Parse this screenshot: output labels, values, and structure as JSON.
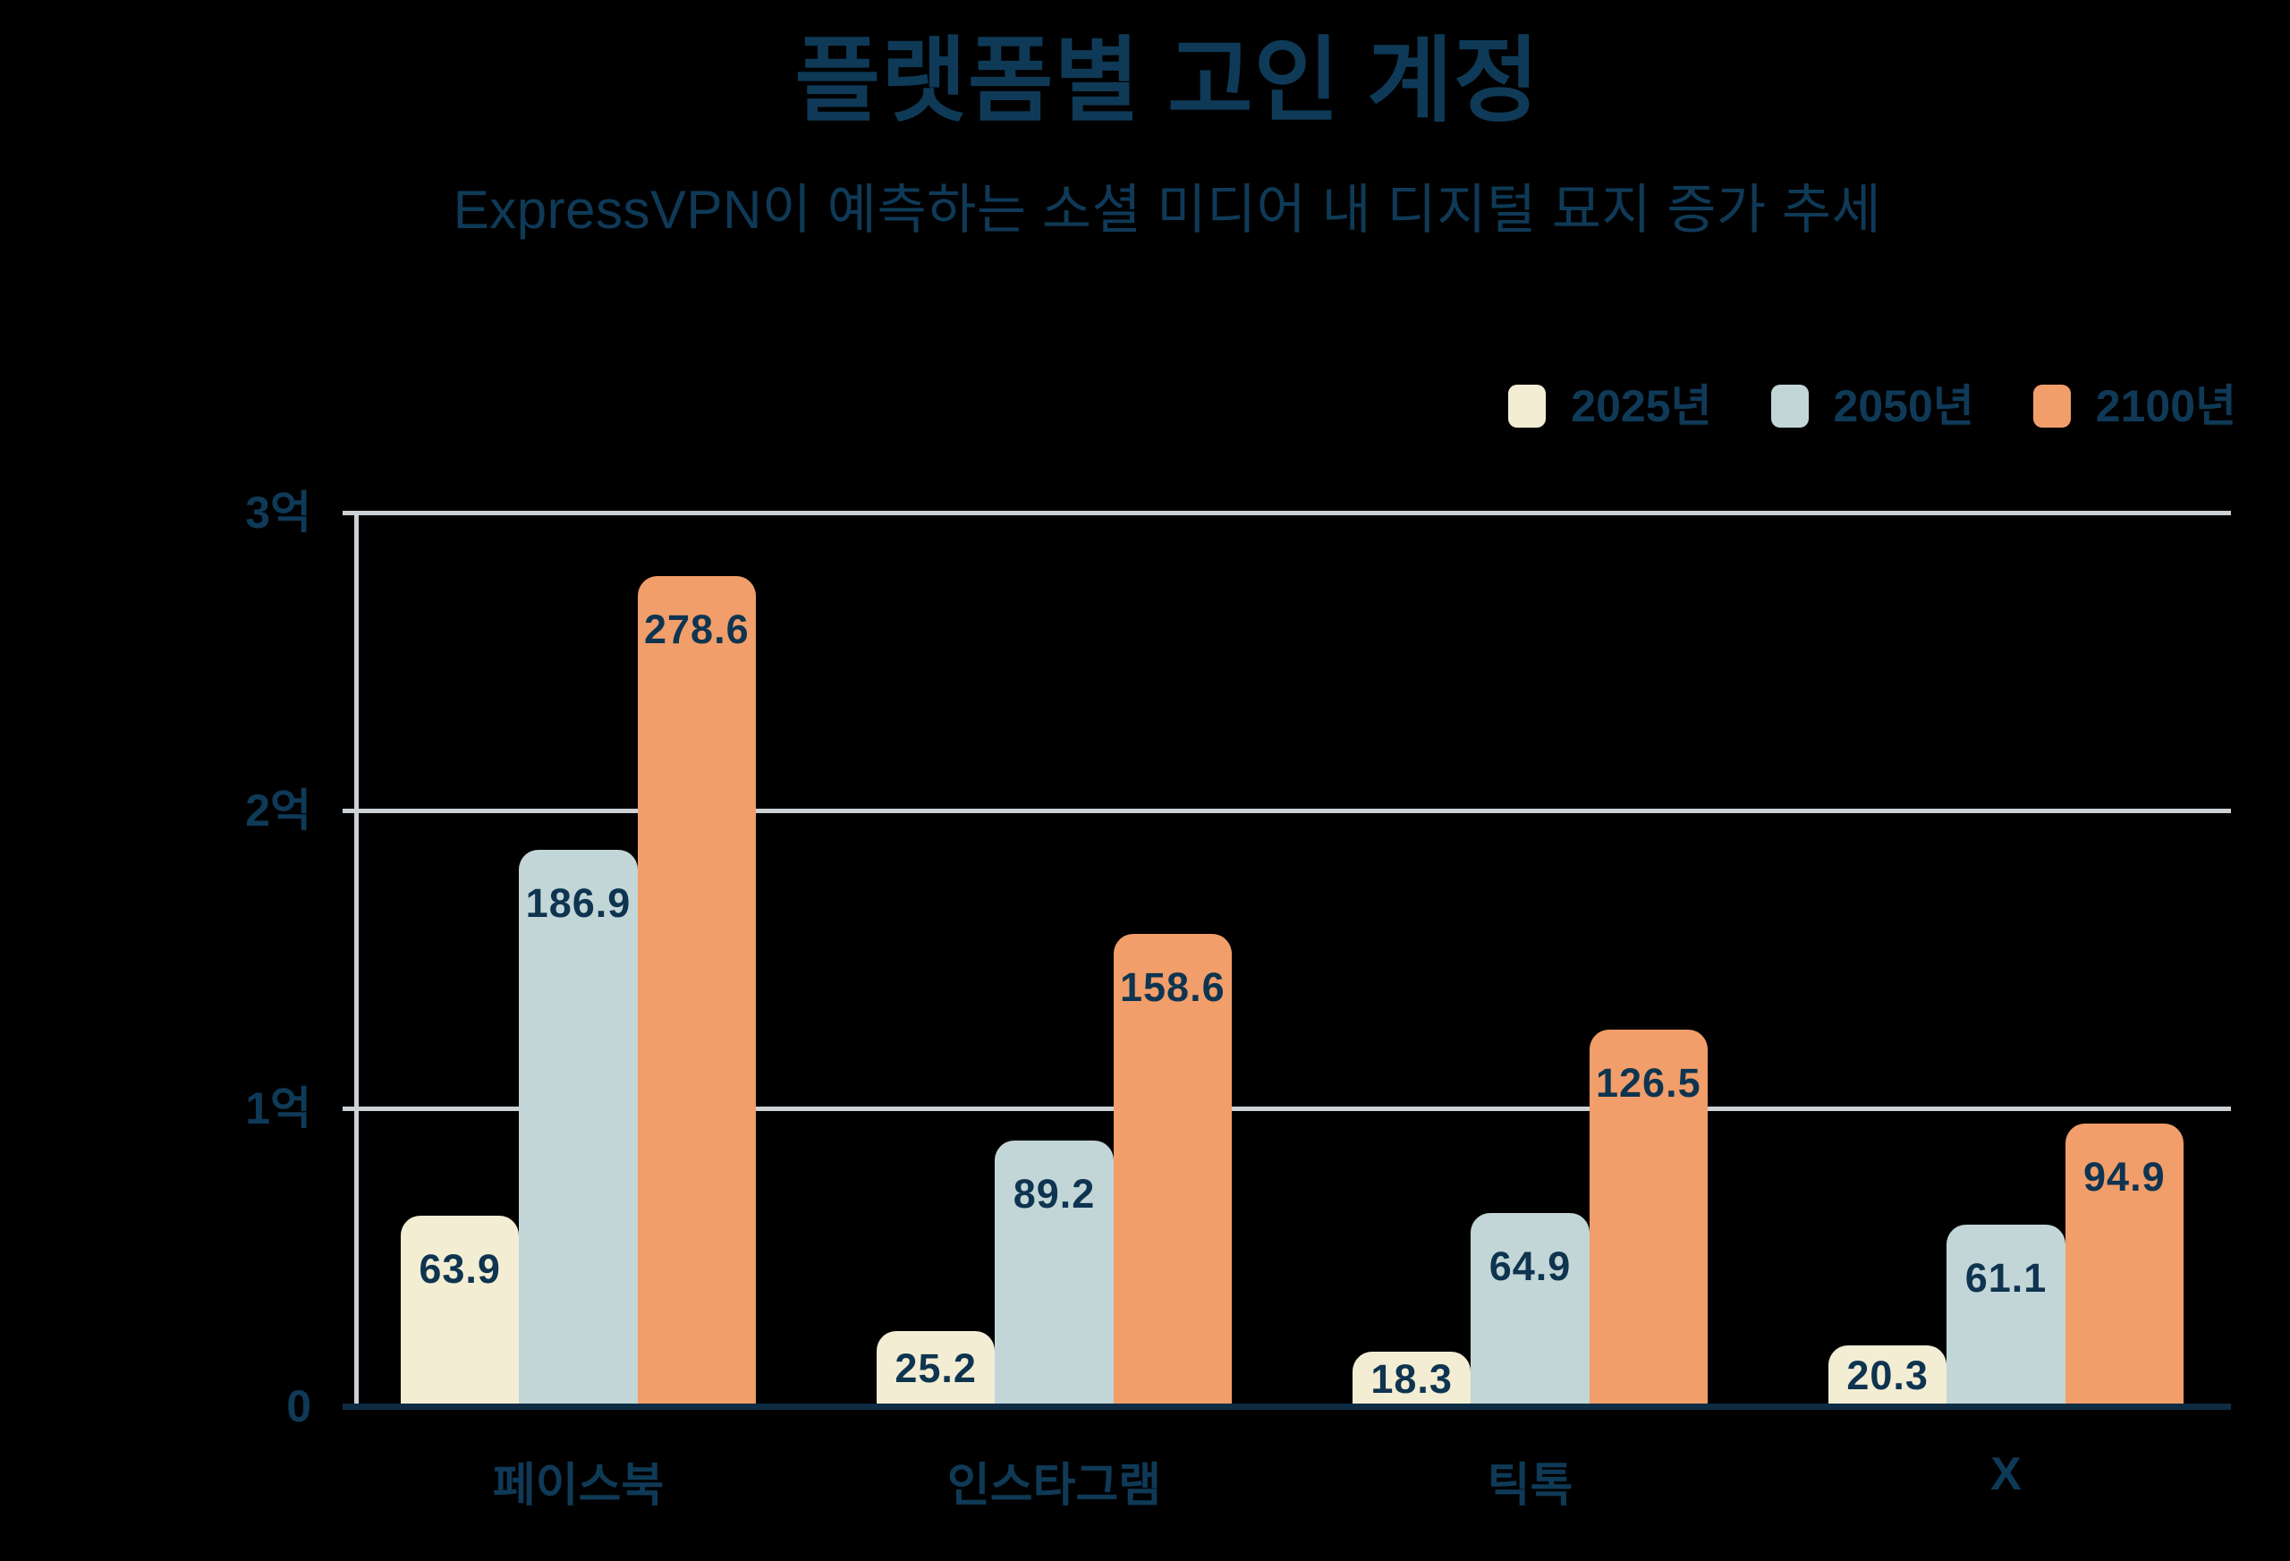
{
  "title": "플랫폼별 고인 계정",
  "subtitle": "ExpressVPN이 예측하는 소셜 미디어 내 디지털 묘지 증가 추세",
  "legend": {
    "position": "top-right",
    "items": [
      {
        "label": "2025년",
        "color": "#F2EDD3"
      },
      {
        "label": "2050년",
        "color": "#C2D6D7"
      },
      {
        "label": "2100년",
        "color": "#F19E6A"
      }
    ]
  },
  "y_axis": {
    "ticks": [
      {
        "label": "0",
        "value": 0
      },
      {
        "label": "1억",
        "value": 100
      },
      {
        "label": "2억",
        "value": 200
      },
      {
        "label": "3억",
        "value": 300
      }
    ]
  },
  "chart_data": {
    "type": "bar",
    "title": "플랫폼별 고인 계정",
    "subtitle": "ExpressVPN이 예측하는 소셜 미디어 내 디지털 묘지 증가 추세",
    "categories": [
      "페이스북",
      "인스타그램",
      "틱톡",
      "X"
    ],
    "series": [
      {
        "name": "2025년",
        "color": "#F2EDD3",
        "values": [
          63.9,
          25.2,
          18.3,
          20.3
        ]
      },
      {
        "name": "2050년",
        "color": "#C2D6D7",
        "values": [
          186.9,
          89.2,
          64.9,
          61.1
        ]
      },
      {
        "name": "2100년",
        "color": "#F19E6A",
        "values": [
          278.6,
          158.6,
          126.5,
          94.9
        ]
      }
    ],
    "value_labels": true,
    "xlabel": "",
    "ylabel": "",
    "y_tick_labels": [
      "0",
      "1억",
      "2억",
      "3억"
    ],
    "ylim": [
      0,
      300
    ],
    "grid": "horizontal",
    "legend_position": "top-right"
  },
  "colors": {
    "background": "#000000",
    "text": "#0F3A57",
    "value_text": "#0E3450",
    "gridline": "#CCD1D5",
    "baseline": "#0E2C44"
  }
}
